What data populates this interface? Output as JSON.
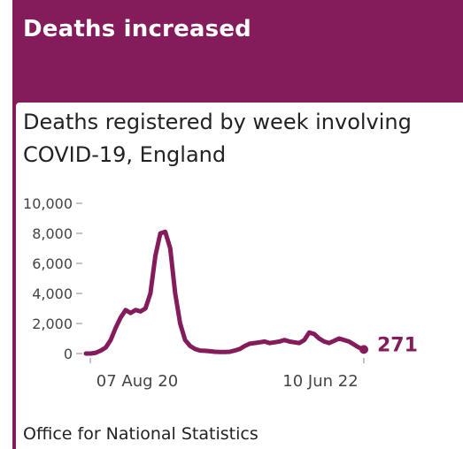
{
  "card": {
    "title": "Deaths increased",
    "accent_color": "#841c5c",
    "source": "Office for National Statistics"
  },
  "chart_data": {
    "type": "line",
    "title": "Deaths registered by week involving COVID-19, England",
    "xlabel": "",
    "ylabel": "",
    "ylim": [
      0,
      10000
    ],
    "yticks": [
      0,
      2000,
      4000,
      6000,
      8000,
      10000
    ],
    "ytick_labels": [
      "0",
      "2,000",
      "4,000",
      "6,000",
      "8,000",
      "10,000"
    ],
    "xtick_labels": [
      "07 Aug 20",
      "10 Jun 22"
    ],
    "grid": false,
    "color": "#841c5c",
    "end_label": "271",
    "series": [
      {
        "values": [
          0,
          0,
          50,
          200,
          400,
          900,
          1700,
          2400,
          2900,
          2700,
          2900,
          2800,
          3000,
          4000,
          6500,
          8000,
          8100,
          7000,
          4000,
          2000,
          900,
          500,
          300,
          200,
          180,
          150,
          120,
          100,
          100,
          120,
          200,
          300,
          500,
          650,
          700,
          750,
          800,
          700,
          750,
          800,
          900,
          800,
          750,
          700,
          900,
          1400,
          1300,
          1000,
          800,
          700,
          850,
          1000,
          900,
          800,
          600,
          400,
          271
        ]
      }
    ]
  }
}
